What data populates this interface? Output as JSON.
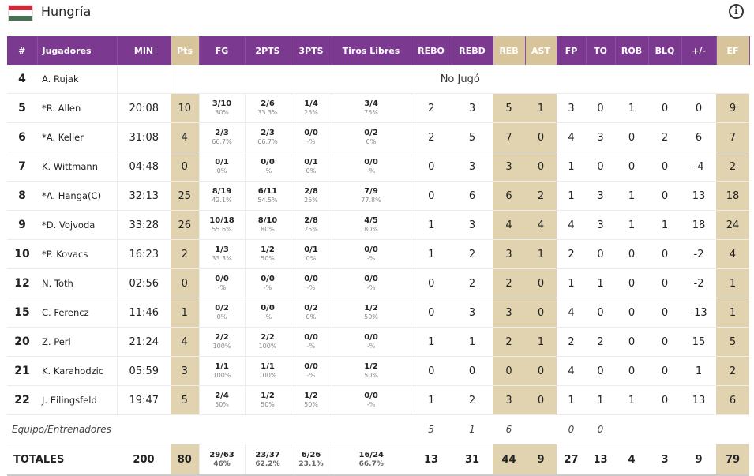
{
  "team": {
    "name": "Hungría",
    "flag_colors": [
      "#ce2939",
      "#ffffff",
      "#477050"
    ]
  },
  "header_cols": [
    "#",
    "Jugadores",
    "MIN",
    "Pts",
    "FG",
    "2PTS",
    "3PTS",
    "Tiros Libres",
    "REBO",
    "REBD",
    "REB",
    "AST",
    "FP",
    "TO",
    "ROB",
    "BLQ",
    "+/-",
    "EF"
  ],
  "dnp_label": "No Jugó",
  "players": [
    {
      "num": "4",
      "name": "A. Rujak",
      "dnp": true
    },
    {
      "num": "5",
      "name": "*R. Allen",
      "min": "20:08",
      "pts": "10",
      "fg": "3/10",
      "fg_pct": "30%",
      "p2": "2/6",
      "p2_pct": "33.3%",
      "p3": "1/4",
      "p3_pct": "25%",
      "ft": "3/4",
      "ft_pct": "75%",
      "rebo": "2",
      "rebd": "3",
      "reb": "5",
      "ast": "1",
      "fp": "3",
      "to": "0",
      "rob": "1",
      "blq": "0",
      "pm": "0",
      "ef": "9"
    },
    {
      "num": "6",
      "name": "*A. Keller",
      "min": "31:08",
      "pts": "4",
      "fg": "2/3",
      "fg_pct": "66.7%",
      "p2": "2/3",
      "p2_pct": "66.7%",
      "p3": "0/0",
      "p3_pct": "-%",
      "ft": "0/2",
      "ft_pct": "0%",
      "rebo": "2",
      "rebd": "5",
      "reb": "7",
      "ast": "0",
      "fp": "4",
      "to": "3",
      "rob": "0",
      "blq": "2",
      "pm": "6",
      "ef": "7"
    },
    {
      "num": "7",
      "name": "K. Wittmann",
      "min": "04:48",
      "pts": "0",
      "fg": "0/1",
      "fg_pct": "0%",
      "p2": "0/0",
      "p2_pct": "-%",
      "p3": "0/1",
      "p3_pct": "0%",
      "ft": "0/0",
      "ft_pct": "-%",
      "rebo": "0",
      "rebd": "3",
      "reb": "3",
      "ast": "0",
      "fp": "1",
      "to": "0",
      "rob": "0",
      "blq": "0",
      "pm": "-4",
      "ef": "2"
    },
    {
      "num": "8",
      "name": "*A. Hanga(C)",
      "min": "32:13",
      "pts": "25",
      "fg": "8/19",
      "fg_pct": "42.1%",
      "p2": "6/11",
      "p2_pct": "54.5%",
      "p3": "2/8",
      "p3_pct": "25%",
      "ft": "7/9",
      "ft_pct": "77.8%",
      "rebo": "0",
      "rebd": "6",
      "reb": "6",
      "ast": "2",
      "fp": "1",
      "to": "3",
      "rob": "1",
      "blq": "0",
      "pm": "13",
      "ef": "18"
    },
    {
      "num": "9",
      "name": "*D. Vojvoda",
      "min": "33:28",
      "pts": "26",
      "fg": "10/18",
      "fg_pct": "55.6%",
      "p2": "8/10",
      "p2_pct": "80%",
      "p3": "2/8",
      "p3_pct": "25%",
      "ft": "4/5",
      "ft_pct": "80%",
      "rebo": "1",
      "rebd": "3",
      "reb": "4",
      "ast": "4",
      "fp": "4",
      "to": "3",
      "rob": "1",
      "blq": "1",
      "pm": "18",
      "ef": "24"
    },
    {
      "num": "10",
      "name": "*P. Kovacs",
      "min": "16:23",
      "pts": "2",
      "fg": "1/3",
      "fg_pct": "33.3%",
      "p2": "1/2",
      "p2_pct": "50%",
      "p3": "0/1",
      "p3_pct": "0%",
      "ft": "0/0",
      "ft_pct": "-%",
      "rebo": "1",
      "rebd": "2",
      "reb": "3",
      "ast": "1",
      "fp": "2",
      "to": "0",
      "rob": "0",
      "blq": "0",
      "pm": "-2",
      "ef": "4"
    },
    {
      "num": "12",
      "name": "N. Toth",
      "min": "02:56",
      "pts": "0",
      "fg": "0/0",
      "fg_pct": "-%",
      "p2": "0/0",
      "p2_pct": "-%",
      "p3": "0/0",
      "p3_pct": "-%",
      "ft": "0/0",
      "ft_pct": "-%",
      "rebo": "0",
      "rebd": "2",
      "reb": "2",
      "ast": "0",
      "fp": "1",
      "to": "1",
      "rob": "0",
      "blq": "0",
      "pm": "-2",
      "ef": "1"
    },
    {
      "num": "15",
      "name": "C. Ferencz",
      "min": "11:46",
      "pts": "1",
      "fg": "0/2",
      "fg_pct": "0%",
      "p2": "0/0",
      "p2_pct": "-%",
      "p3": "0/2",
      "p3_pct": "0%",
      "ft": "1/2",
      "ft_pct": "50%",
      "rebo": "0",
      "rebd": "3",
      "reb": "3",
      "ast": "0",
      "fp": "4",
      "to": "0",
      "rob": "0",
      "blq": "0",
      "pm": "-13",
      "ef": "1"
    },
    {
      "num": "20",
      "name": "Z. Perl",
      "min": "21:24",
      "pts": "4",
      "fg": "2/2",
      "fg_pct": "100%",
      "p2": "2/2",
      "p2_pct": "100%",
      "p3": "0/0",
      "p3_pct": "-%",
      "ft": "0/0",
      "ft_pct": "-%",
      "rebo": "1",
      "rebd": "1",
      "reb": "2",
      "ast": "1",
      "fp": "2",
      "to": "2",
      "rob": "0",
      "blq": "0",
      "pm": "15",
      "ef": "5"
    },
    {
      "num": "21",
      "name": "K. Karahodzic",
      "min": "05:59",
      "pts": "3",
      "fg": "1/1",
      "fg_pct": "100%",
      "p2": "1/1",
      "p2_pct": "100%",
      "p3": "0/0",
      "p3_pct": "-%",
      "ft": "1/2",
      "ft_pct": "50%",
      "rebo": "0",
      "rebd": "0",
      "reb": "0",
      "ast": "0",
      "fp": "4",
      "to": "0",
      "rob": "0",
      "blq": "0",
      "pm": "1",
      "ef": "2"
    },
    {
      "num": "22",
      "name": "J. Eilingsfeld",
      "min": "19:47",
      "pts": "5",
      "fg": "2/4",
      "fg_pct": "50%",
      "p2": "1/2",
      "p2_pct": "50%",
      "p3": "1/2",
      "p3_pct": "50%",
      "ft": "0/0",
      "ft_pct": "-%",
      "rebo": "1",
      "rebd": "2",
      "reb": "3",
      "ast": "0",
      "fp": "1",
      "to": "1",
      "rob": "1",
      "blq": "0",
      "pm": "13",
      "ef": "6"
    }
  ],
  "team_row": {
    "label": "Equipo/Entrenadores",
    "rebo": "5",
    "rebd": "1",
    "reb": "6",
    "fp": "0",
    "to": "0"
  },
  "totals": {
    "label": "TOTALES",
    "min": "200",
    "pts": "80",
    "fg": "29/63",
    "fg_pct": "46%",
    "p2": "23/37",
    "p2_pct": "62.2%",
    "p3": "6/26",
    "p3_pct": "23.1%",
    "ft": "16/24",
    "ft_pct": "66.7%",
    "rebo": "13",
    "rebd": "31",
    "reb": "44",
    "ast": "9",
    "fp": "27",
    "to": "13",
    "rob": "4",
    "blq": "3",
    "pm": "9",
    "ef": "79"
  }
}
